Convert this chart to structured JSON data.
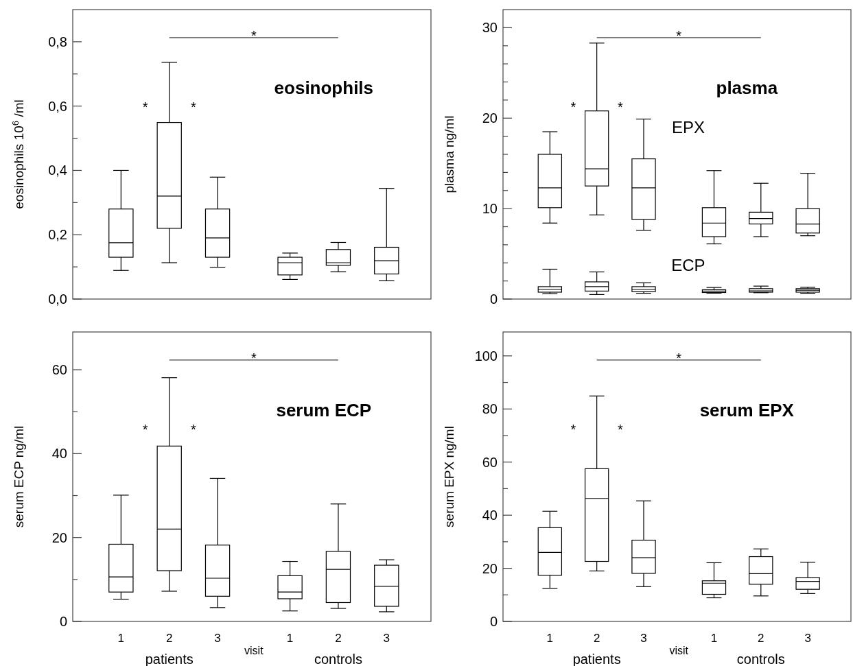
{
  "chart_data": [
    {
      "type": "box",
      "title": "eosinophils",
      "ylabel": "eosinophils 10$^{6}$ /ml",
      "categories": [
        "1",
        "2",
        "3",
        "1",
        "2",
        "3"
      ],
      "tick_labels": "y",
      "ylim": [
        0,
        0.9
      ],
      "yticks": [
        {
          "value": 0,
          "label": "0,0"
        },
        {
          "value": 0.1,
          "label": null
        },
        {
          "value": 0.2,
          "label": "0,2"
        },
        {
          "value": 0.3,
          "label": null
        },
        {
          "value": 0.4,
          "label": "0,4"
        },
        {
          "value": 0.5,
          "label": null
        },
        {
          "value": 0.6,
          "label": "0,6"
        },
        {
          "value": 0.7,
          "label": null
        },
        {
          "value": 0.8,
          "label": "0,8"
        }
      ],
      "boxes": [
        {
          "low": 0.089,
          "q1": 0.13,
          "median": 0.175,
          "q3": 0.28,
          "high": 0.4
        },
        {
          "low": 0.113,
          "q1": 0.22,
          "median": 0.32,
          "q3": 0.549,
          "high": 0.736
        },
        {
          "low": 0.099,
          "q1": 0.13,
          "median": 0.19,
          "q3": 0.28,
          "high": 0.379
        },
        {
          "low": 0.061,
          "q1": 0.075,
          "median": 0.113,
          "q3": 0.13,
          "high": 0.143
        },
        {
          "low": 0.085,
          "q1": 0.105,
          "median": 0.113,
          "q3": 0.154,
          "high": 0.176
        },
        {
          "low": 0.057,
          "q1": 0.078,
          "median": 0.119,
          "q3": 0.161,
          "high": 0.344
        }
      ],
      "annotations": [
        "*",
        "*",
        "*"
      ]
    },
    {
      "type": "box",
      "title": "plasma",
      "ylabel": "plasma ng/ml",
      "categories": [
        "1",
        "2",
        "3",
        "1",
        "2",
        "3"
      ],
      "tick_labels": "y",
      "ylim": [
        0,
        32
      ],
      "yticks": [
        0,
        {
          "value": 2,
          "label": null
        },
        {
          "value": 4,
          "label": null
        },
        {
          "value": 6,
          "label": null
        },
        {
          "value": 8,
          "label": null
        },
        10,
        {
          "value": 12,
          "label": null
        },
        {
          "value": 14,
          "label": null
        },
        {
          "value": 16,
          "label": null
        },
        {
          "value": 18,
          "label": null
        },
        20,
        {
          "value": 22,
          "label": null
        },
        {
          "value": 24,
          "label": null
        },
        {
          "value": 26,
          "label": null
        },
        {
          "value": 28,
          "label": null
        },
        30
      ],
      "series": [
        {
          "name": "EPX",
          "color": "#000000",
          "boxes": [
            {
              "low": 8.4,
              "q1": 10.1,
              "median": 12.3,
              "q3": 16.0,
              "high": 18.5
            },
            {
              "low": 9.3,
              "q1": 12.5,
              "median": 14.4,
              "q3": 20.8,
              "high": 28.3
            },
            {
              "low": 7.6,
              "q1": 8.8,
              "median": 12.3,
              "q3": 15.5,
              "high": 19.9
            },
            {
              "low": 6.1,
              "q1": 6.9,
              "median": 8.4,
              "q3": 10.1,
              "high": 14.2
            },
            {
              "low": 6.9,
              "q1": 8.3,
              "median": 8.9,
              "q3": 9.6,
              "high": 12.8
            },
            {
              "low": 7.0,
              "q1": 7.3,
              "median": 8.3,
              "q3": 10.0,
              "high": 13.9
            }
          ]
        },
        {
          "name": "ECP",
          "color": "#000000",
          "boxes": [
            {
              "low": 0.6,
              "q1": 0.76,
              "median": 1.06,
              "q3": 1.37,
              "high": 3.3
            },
            {
              "low": 0.5,
              "q1": 0.88,
              "median": 1.37,
              "q3": 1.9,
              "high": 3.0
            },
            {
              "low": 0.64,
              "q1": 0.82,
              "median": 1.06,
              "q3": 1.37,
              "high": 1.8
            },
            {
              "low": 0.65,
              "q1": 0.72,
              "median": 0.88,
              "q3": 1.03,
              "high": 1.28
            },
            {
              "low": 0.7,
              "q1": 0.76,
              "median": 0.91,
              "q3": 1.15,
              "high": 1.43
            },
            {
              "low": 0.64,
              "q1": 0.76,
              "median": 0.97,
              "q3": 1.15,
              "high": 1.3
            }
          ]
        }
      ],
      "annotations": [
        "*",
        "*",
        "*"
      ]
    },
    {
      "type": "box",
      "title": "serum ECP",
      "ylabel": "serum ECP ng/ml",
      "xlabel": "visit",
      "categories": [
        "1",
        "2",
        "3",
        "1",
        "2",
        "3"
      ],
      "ylim": [
        0,
        69
      ],
      "yticks": [
        0,
        {
          "value": 10,
          "label": null
        },
        20,
        {
          "value": 30,
          "label": null
        },
        40,
        {
          "value": 50,
          "label": null
        },
        60
      ],
      "boxes": [
        {
          "low": 5.3,
          "q1": 7.0,
          "median": 10.6,
          "q3": 18.4,
          "high": 30.1
        },
        {
          "low": 7.2,
          "q1": 12.1,
          "median": 22.0,
          "q3": 41.8,
          "high": 58.1
        },
        {
          "low": 3.3,
          "q1": 6.0,
          "median": 10.3,
          "q3": 18.2,
          "high": 34.1
        },
        {
          "low": 2.5,
          "q1": 5.4,
          "median": 7.0,
          "q3": 10.9,
          "high": 14.3
        },
        {
          "low": 3.1,
          "q1": 4.5,
          "median": 12.4,
          "q3": 16.7,
          "high": 28.0
        },
        {
          "low": 2.3,
          "q1": 3.6,
          "median": 8.4,
          "q3": 13.4,
          "high": 14.7
        }
      ],
      "annotations": [
        "*",
        "*",
        "*",
        "patients",
        "controls"
      ]
    },
    {
      "type": "box",
      "title": "serum EPX",
      "ylabel": "serum EPX ng/ml",
      "xlabel": "visit",
      "categories": [
        "1",
        "2",
        "3",
        "1",
        "2",
        "3"
      ],
      "ylim": [
        0,
        109
      ],
      "yticks": [
        0,
        {
          "value": 10,
          "label": null
        },
        20,
        {
          "value": 30,
          "label": null
        },
        40,
        {
          "value": 50,
          "label": null
        },
        60,
        {
          "value": 70,
          "label": null
        },
        80,
        {
          "value": 90,
          "label": null
        },
        100
      ],
      "boxes": [
        {
          "low": 12.5,
          "q1": 17.4,
          "median": 26.0,
          "q3": 35.3,
          "high": 41.5
        },
        {
          "low": 19.0,
          "q1": 22.6,
          "median": 46.3,
          "q3": 57.5,
          "high": 84.9
        },
        {
          "low": 13.1,
          "q1": 18.1,
          "median": 24.0,
          "q3": 30.6,
          "high": 45.4
        },
        {
          "low": 8.9,
          "q1": 10.2,
          "median": 14.4,
          "q3": 15.3,
          "high": 22.1
        },
        {
          "low": 9.6,
          "q1": 14.0,
          "median": 18.0,
          "q3": 24.4,
          "high": 27.3
        },
        {
          "low": 10.5,
          "q1": 12.1,
          "median": 15.1,
          "q3": 16.5,
          "high": 22.3
        }
      ],
      "annotations": [
        "*",
        "*",
        "*",
        "patients",
        "controls"
      ]
    }
  ]
}
